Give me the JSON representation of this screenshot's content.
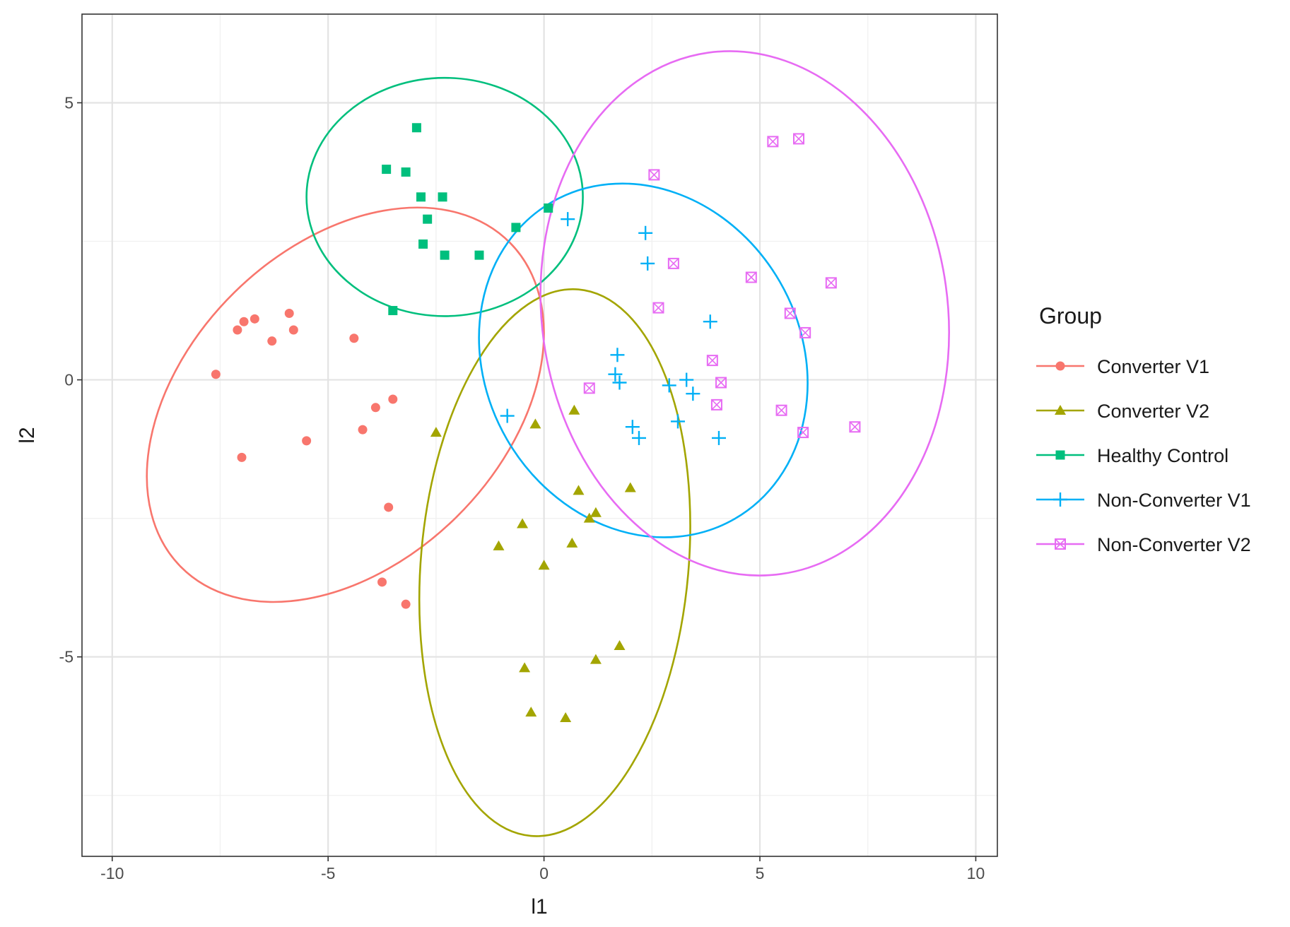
{
  "chart_data": {
    "type": "scatter",
    "title": "",
    "xlabel": "l1",
    "ylabel": "l2",
    "xlim": [
      -10.7,
      10.5
    ],
    "ylim": [
      -8.6,
      6.6
    ],
    "x_ticks": [
      -10,
      -5,
      0,
      5,
      10
    ],
    "x_tick_labels": [
      "-10",
      "-5",
      "0",
      "5",
      "10"
    ],
    "y_ticks": [
      -5,
      0,
      5
    ],
    "y_tick_labels": [
      "-5",
      "0",
      "5"
    ],
    "grid": true,
    "legend": {
      "title": "Group",
      "placement": "right"
    },
    "series": [
      {
        "name": "Converter V1",
        "color": "#F8766D",
        "marker": "circle",
        "points": [
          [
            -7.6,
            0.1
          ],
          [
            -7.1,
            0.9
          ],
          [
            -6.95,
            1.05
          ],
          [
            -6.7,
            1.1
          ],
          [
            -6.3,
            0.7
          ],
          [
            -5.9,
            1.2
          ],
          [
            -5.8,
            0.9
          ],
          [
            -4.4,
            0.75
          ],
          [
            -7.0,
            -1.4
          ],
          [
            -5.5,
            -1.1
          ],
          [
            -4.2,
            -0.9
          ],
          [
            -3.9,
            -0.5
          ],
          [
            -3.5,
            -0.35
          ],
          [
            -3.6,
            -2.3
          ],
          [
            -3.75,
            -3.65
          ],
          [
            -3.2,
            -4.05
          ]
        ],
        "ellipse": {
          "center": [
            -4.6,
            -0.45
          ],
          "sd": [
            5.35,
            2.85
          ],
          "rotation_deg": -44.5
        }
      },
      {
        "name": "Converter V2",
        "color": "#A3A500",
        "marker": "triangle",
        "points": [
          [
            -2.5,
            -0.95
          ],
          [
            -0.2,
            -0.8
          ],
          [
            0.7,
            -0.55
          ],
          [
            0.8,
            -2.0
          ],
          [
            2.0,
            -1.95
          ],
          [
            1.2,
            -2.4
          ],
          [
            1.05,
            -2.5
          ],
          [
            -0.5,
            -2.6
          ],
          [
            -1.05,
            -3.0
          ],
          [
            0.65,
            -2.95
          ],
          [
            0.0,
            -3.35
          ],
          [
            1.75,
            -4.8
          ],
          [
            1.2,
            -5.05
          ],
          [
            -0.45,
            -5.2
          ],
          [
            -0.3,
            -6.0
          ],
          [
            0.5,
            -6.1
          ]
        ],
        "ellipse": {
          "center": [
            0.25,
            -3.3
          ],
          "sd": [
            3.1,
            4.95
          ],
          "rotation_deg": 5
        }
      },
      {
        "name": "Healthy Control",
        "color": "#00BF7D",
        "marker": "square",
        "points": [
          [
            -2.95,
            4.55
          ],
          [
            -3.65,
            3.8
          ],
          [
            -3.2,
            3.75
          ],
          [
            -2.85,
            3.3
          ],
          [
            -2.35,
            3.3
          ],
          [
            -2.7,
            2.9
          ],
          [
            -2.8,
            2.45
          ],
          [
            -2.3,
            2.25
          ],
          [
            -1.5,
            2.25
          ],
          [
            -0.65,
            2.75
          ],
          [
            0.1,
            3.1
          ],
          [
            -3.5,
            1.25
          ]
        ],
        "ellipse": {
          "center": [
            -2.3,
            3.3
          ],
          "sd": [
            3.2,
            2.15
          ],
          "rotation_deg": 0
        }
      },
      {
        "name": "Non-Converter V1",
        "color": "#00B0F6",
        "marker": "plus",
        "points": [
          [
            0.55,
            2.9
          ],
          [
            2.35,
            2.65
          ],
          [
            2.4,
            2.1
          ],
          [
            3.85,
            1.05
          ],
          [
            1.7,
            0.45
          ],
          [
            1.65,
            0.1
          ],
          [
            1.75,
            -0.05
          ],
          [
            3.3,
            0.0
          ],
          [
            2.9,
            -0.1
          ],
          [
            3.45,
            -0.25
          ],
          [
            -0.85,
            -0.65
          ],
          [
            3.1,
            -0.75
          ],
          [
            2.05,
            -0.85
          ],
          [
            2.2,
            -1.05
          ],
          [
            4.05,
            -1.05
          ]
        ],
        "ellipse": {
          "center": [
            2.3,
            0.35
          ],
          "sd": [
            3.65,
            3.3
          ],
          "rotation_deg": -30
        }
      },
      {
        "name": "Non-Converter V2",
        "color": "#E76BF3",
        "marker": "square-x",
        "points": [
          [
            5.3,
            4.3
          ],
          [
            5.9,
            4.35
          ],
          [
            2.55,
            3.7
          ],
          [
            3.0,
            2.1
          ],
          [
            4.8,
            1.85
          ],
          [
            6.65,
            1.75
          ],
          [
            2.65,
            1.3
          ],
          [
            5.7,
            1.2
          ],
          [
            6.05,
            0.85
          ],
          [
            3.9,
            0.35
          ],
          [
            1.05,
            -0.15
          ],
          [
            4.1,
            -0.05
          ],
          [
            4.0,
            -0.45
          ],
          [
            5.5,
            -0.55
          ],
          [
            6.0,
            -0.95
          ],
          [
            7.2,
            -0.85
          ]
        ],
        "ellipse": {
          "center": [
            4.65,
            1.2
          ],
          "sd": [
            4.7,
            4.75
          ],
          "rotation_deg": -8
        }
      }
    ]
  }
}
